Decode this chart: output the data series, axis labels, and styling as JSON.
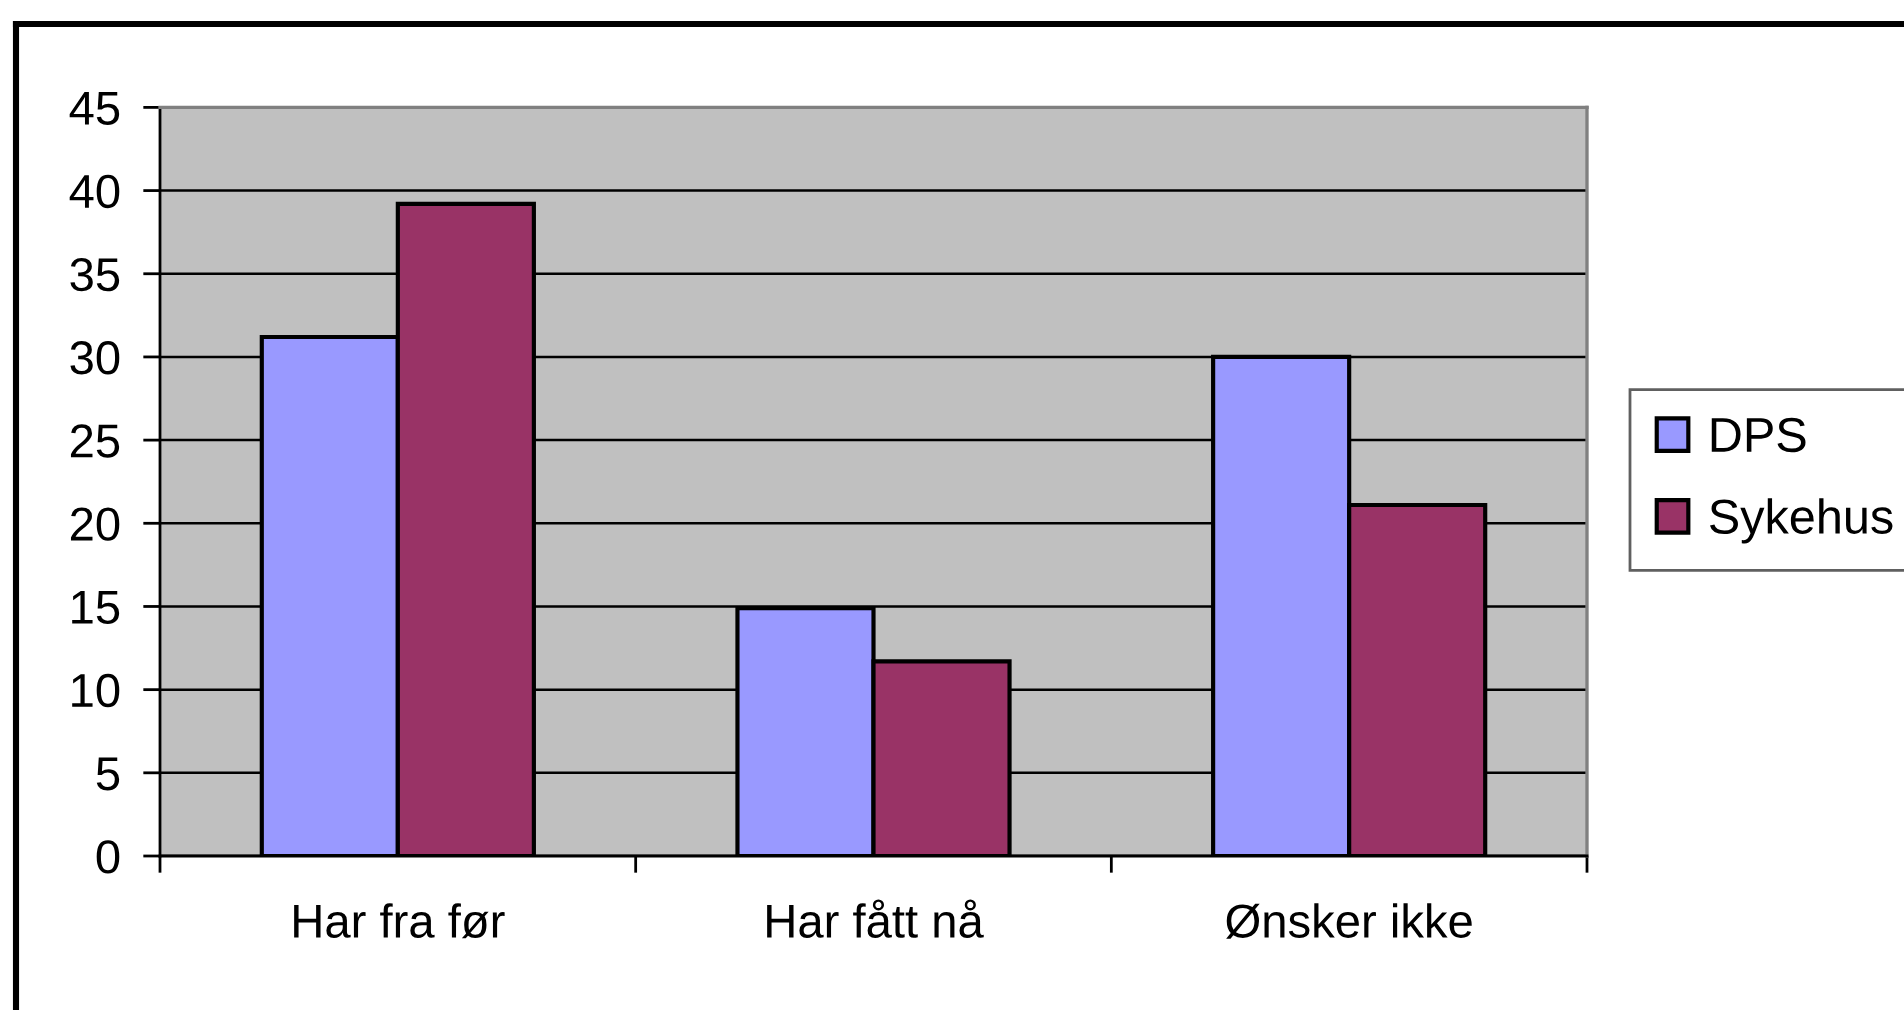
{
  "chart_data": {
    "type": "bar",
    "categories": [
      "Har fra før",
      "Har fått nå",
      "Ønsker ikke"
    ],
    "series": [
      {
        "name": "DPS",
        "color": "#9999ff",
        "values": [
          31.2,
          14.9,
          30.0
        ]
      },
      {
        "name": "Sykehus",
        "color": "#993366",
        "values": [
          39.2,
          11.7,
          21.1
        ]
      }
    ],
    "ylim": [
      0,
      45
    ],
    "yticks": [
      0,
      5,
      10,
      15,
      20,
      25,
      30,
      35,
      40,
      45
    ],
    "grid": "y",
    "legend": "right"
  }
}
